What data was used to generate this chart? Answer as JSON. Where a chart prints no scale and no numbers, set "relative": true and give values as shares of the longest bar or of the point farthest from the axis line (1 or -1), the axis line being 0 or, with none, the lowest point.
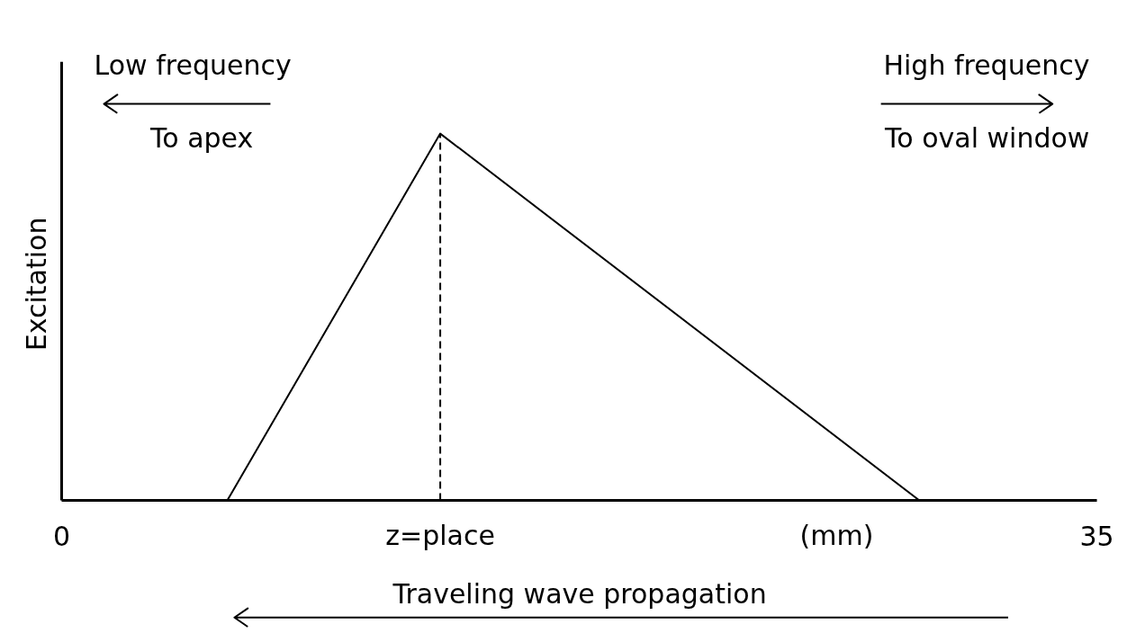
{
  "chart_data": {
    "type": "line",
    "relative": true,
    "ylabel": "Excitation",
    "xlabel": "(mm)",
    "x": [
      5.6,
      12.8,
      29.0
    ],
    "series": [
      {
        "color": "#000000",
        "values": [
          0,
          1,
          0
        ]
      }
    ],
    "xlim": [
      0,
      35
    ],
    "xticks": [
      0,
      {
        "value": 12.8,
        "label": "z=place"
      },
      35
    ],
    "ref_lines": [
      {
        "axis": "x",
        "value": 12.8,
        "line_style": "dashed",
        "color": "#000000"
      }
    ],
    "annotations": [
      "Low frequency",
      "To apex",
      "High frequency",
      "To oval window",
      "Traveling wave propagation"
    ],
    "grid": false,
    "legend": false,
    "marker": "none",
    "line_style": "solid"
  }
}
